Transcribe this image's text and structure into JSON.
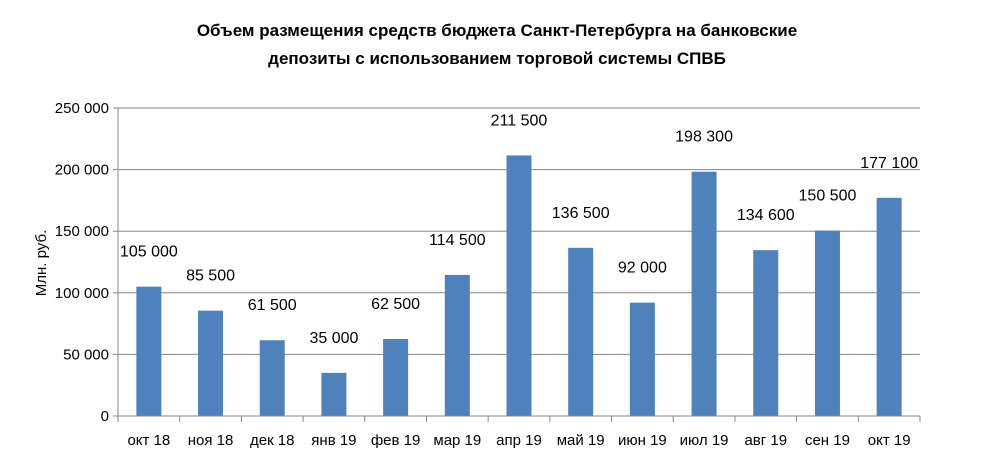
{
  "chart_data": {
    "type": "bar",
    "title_line1": "Объем размещения средств бюджета Санкт-Петербурга на банковские",
    "title_line2": "депозиты с использованием торговой системы СПВБ",
    "ylabel": "Млн. руб.",
    "xlabel": "",
    "categories": [
      "окт 18",
      "ноя 18",
      "дек 18",
      "янв 19",
      "фев 19",
      "мар 19",
      "апр 19",
      "май 19",
      "июн 19",
      "июл 19",
      "авг 19",
      "сен 19",
      "окт 19"
    ],
    "values": [
      105000,
      85500,
      61500,
      35000,
      62500,
      114500,
      211500,
      136500,
      92000,
      198300,
      134600,
      150500,
      177100
    ],
    "data_labels": [
      "105 000",
      "85 500",
      "61 500",
      "35 000",
      "62 500",
      "114 500",
      "211 500",
      "136 500",
      "92 000",
      "198 300",
      "134 600",
      "150 500",
      "177 100"
    ],
    "ylim": [
      0,
      250000
    ],
    "yticks": [
      0,
      50000,
      100000,
      150000,
      200000,
      250000
    ],
    "ytick_labels": [
      "0",
      "50 000",
      "100 000",
      "150 000",
      "200 000",
      "250 000"
    ],
    "grid": true,
    "legend": "none",
    "bar_color": "#4F81BD"
  }
}
